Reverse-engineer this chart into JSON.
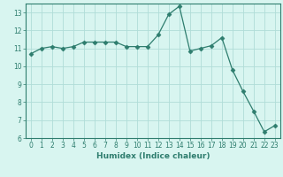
{
  "x": [
    0,
    1,
    2,
    3,
    4,
    5,
    6,
    7,
    8,
    9,
    10,
    11,
    12,
    13,
    14,
    15,
    16,
    17,
    18,
    19,
    20,
    21,
    22,
    23
  ],
  "y": [
    10.7,
    11.0,
    11.1,
    11.0,
    11.1,
    11.35,
    11.35,
    11.35,
    11.35,
    11.1,
    11.1,
    11.1,
    11.75,
    12.9,
    13.35,
    10.85,
    11.0,
    11.15,
    11.6,
    9.8,
    8.6,
    7.5,
    6.35,
    6.7
  ],
  "line_color": "#2e7d6e",
  "marker": "D",
  "marker_size": 2.5,
  "bg_color": "#d8f5f0",
  "grid_color": "#b0ddd8",
  "xlabel": "Humidex (Indice chaleur)",
  "ylim": [
    6,
    13.5
  ],
  "xlim": [
    -0.5,
    23.5
  ],
  "yticks": [
    6,
    7,
    8,
    9,
    10,
    11,
    12,
    13
  ],
  "xticks": [
    0,
    1,
    2,
    3,
    4,
    5,
    6,
    7,
    8,
    9,
    10,
    11,
    12,
    13,
    14,
    15,
    16,
    17,
    18,
    19,
    20,
    21,
    22,
    23
  ],
  "tick_color": "#2e7d6e",
  "label_color": "#2e7d6e",
  "tick_fontsize": 5.5,
  "xlabel_fontsize": 6.5
}
